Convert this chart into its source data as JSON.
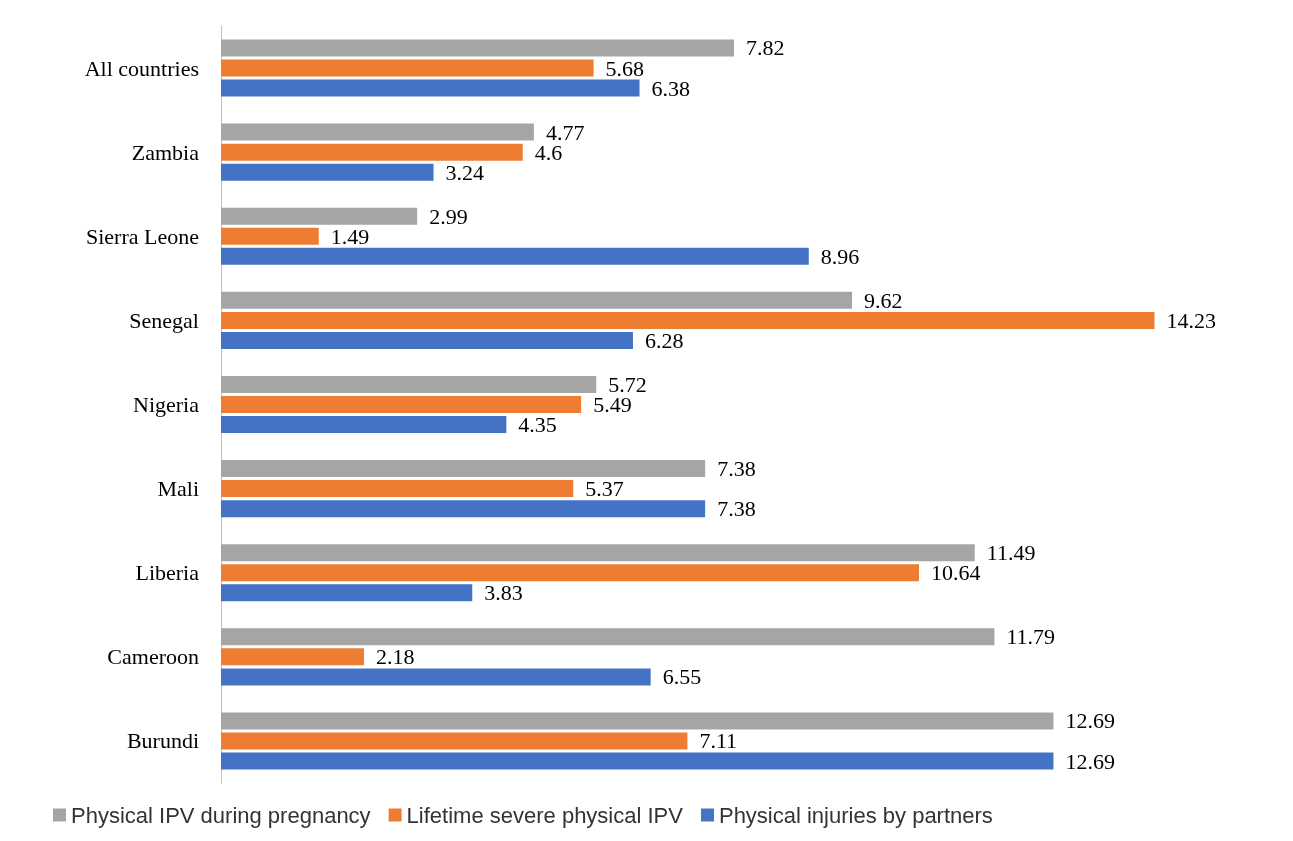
{
  "chart_data": {
    "type": "bar",
    "orientation": "horizontal",
    "data_labels": true,
    "legend": "bottom",
    "categories": [
      "All countries",
      "Zambia",
      "Sierra Leone",
      "Senegal",
      "Nigeria",
      "Mali",
      "Liberia",
      "Cameroon",
      "Burundi"
    ],
    "series": [
      {
        "name": "Physical IPV during pregnancy",
        "color": "#a5a5a5",
        "values": [
          7.82,
          4.77,
          2.99,
          9.62,
          5.72,
          7.38,
          11.49,
          11.79,
          12.69
        ]
      },
      {
        "name": "Lifetime severe physical IPV",
        "color": "#ed7d31",
        "values": [
          5.68,
          4.6,
          1.49,
          14.23,
          5.49,
          5.37,
          10.64,
          2.18,
          7.11
        ]
      },
      {
        "name": "Physical injuries by partners",
        "color": "#4472c4",
        "values": [
          6.38,
          3.24,
          8.96,
          6.28,
          4.35,
          7.38,
          3.83,
          6.55,
          12.69
        ]
      }
    ]
  }
}
